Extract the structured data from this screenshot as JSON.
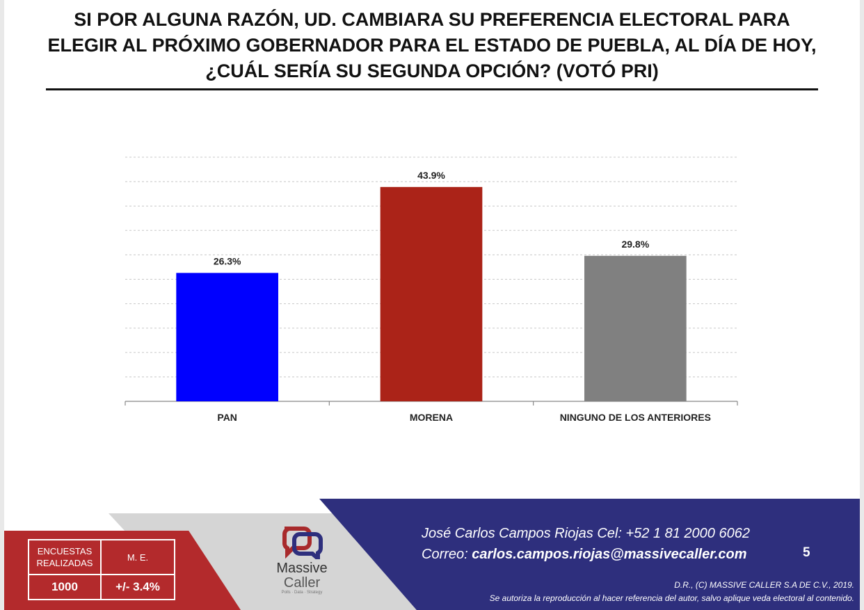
{
  "title": "SI POR ALGUNA RAZÓN, UD. CAMBIARA SU PREFERENCIA ELECTORAL PARA ELEGIR AL PRÓXIMO GOBERNADOR PARA EL ESTADO DE PUEBLA, AL DÍA DE HOY, ¿CUÁL SERÍA SU SEGUNDA OPCIÓN? (VOTÓ PRI)",
  "chart_data": {
    "type": "bar",
    "categories": [
      "PAN",
      "MORENA",
      "NINGUNO DE LOS ANTERIORES"
    ],
    "values": [
      26.3,
      43.9,
      29.8
    ],
    "value_labels": [
      "26.3%",
      "43.9%",
      "29.8%"
    ],
    "colors": [
      "#0000ff",
      "#ab2318",
      "#808080"
    ],
    "ylim": [
      0,
      50
    ],
    "grid": true,
    "gridline_style": "dashed",
    "legend": "none"
  },
  "stats": {
    "surveys_label": "ENCUESTAS REALIZADAS",
    "surveys_value": "1000",
    "me_label": "M. E.",
    "me_value": "+/- 3.4%"
  },
  "logo": {
    "line1": "Massive",
    "line2": "Caller",
    "tagline": "Polls · Data · Strategy"
  },
  "contact": {
    "line1": "José Carlos Campos Riojas Cel: +52 1 81 2000 6062",
    "email_prefix": "Correo:",
    "email": "carlos.campos.riojas@massivecaller.com"
  },
  "page_number": "5",
  "legal": {
    "line1": "D.R., (C) MASSIVE CALLER S.A DE C.V., 2019.",
    "line2": "Se autoriza la reproducción al hacer referencia del autor, salvo aplique veda electoral al contenido."
  }
}
